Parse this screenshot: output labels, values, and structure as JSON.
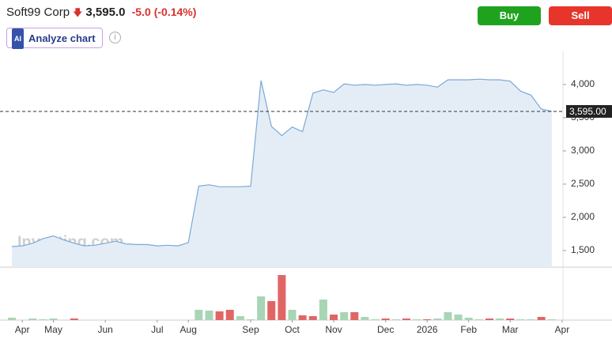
{
  "header": {
    "name": "Soft99 Corp",
    "price": "3,595.0",
    "change": "-5.0",
    "change_percent": "(-0.14%)",
    "buy": "Buy",
    "sell": "Sell",
    "analyze": "Analyze chart",
    "watermark": "Investing.com"
  },
  "chart_data": [
    {
      "type": "area",
      "color": "#7aa9d6",
      "fill": "#e4edf6",
      "categories": [
        null,
        "Apr",
        null,
        null,
        "May",
        null,
        null,
        null,
        null,
        "Jun",
        null,
        null,
        null,
        null,
        "Jul",
        null,
        null,
        "Aug",
        null,
        null,
        null,
        null,
        null,
        "Sep",
        null,
        null,
        null,
        "Oct",
        null,
        null,
        null,
        "Nov",
        null,
        null,
        null,
        null,
        "Dec",
        null,
        null,
        null,
        "2026",
        null,
        null,
        null,
        "Feb",
        null,
        null,
        null,
        "Mar",
        null,
        null,
        null,
        null,
        "Apr"
      ],
      "values": [
        1560,
        1570,
        1610,
        1680,
        1720,
        1660,
        1610,
        1570,
        1580,
        1610,
        1640,
        1600,
        1590,
        1590,
        1570,
        1580,
        1570,
        1620,
        2470,
        2490,
        2460,
        2460,
        2460,
        2470,
        4060,
        3370,
        3230,
        3360,
        3290,
        3870,
        3920,
        3880,
        4010,
        3990,
        4000,
        3990,
        4000,
        4010,
        3990,
        4000,
        3990,
        3960,
        4070,
        4070,
        4070,
        4080,
        4070,
        4070,
        4050,
        3900,
        3840,
        3630,
        3595,
        null
      ],
      "ylim": [
        1250,
        4380
      ],
      "yticks": [
        {
          "value": 1500,
          "label": "1,500"
        },
        {
          "value": 2000,
          "label": "2,000"
        },
        {
          "value": 2500,
          "label": "2,500"
        },
        {
          "value": 3000,
          "label": "3,000"
        },
        {
          "value": 3500,
          "label": "3,500"
        },
        {
          "value": 4000,
          "label": "4,000"
        }
      ],
      "reference_line": {
        "value": 3595,
        "label": "3,595.00"
      }
    },
    {
      "type": "bar",
      "values": [
        3,
        0,
        2,
        1,
        2,
        0,
        2,
        0,
        0,
        0,
        0,
        0,
        0,
        0,
        0,
        0,
        0,
        0,
        13,
        12,
        11,
        13,
        5,
        1,
        30,
        24,
        57,
        13,
        6,
        5,
        26,
        7,
        10,
        10,
        4,
        1,
        2,
        1,
        2,
        1,
        1,
        2,
        10,
        7,
        3,
        1,
        2,
        2,
        2,
        1,
        1,
        4,
        1,
        null
      ],
      "colors": [
        "#a8d5b5",
        "#a8d5b5",
        "#a8d5b5",
        "#a8d5b5",
        "#a8d5b5",
        "#a8d5b5",
        "#e06666",
        "#a8d5b5",
        "#a8d5b5",
        "#a8d5b5",
        "#a8d5b5",
        "#a8d5b5",
        "#a8d5b5",
        "#a8d5b5",
        "#a8d5b5",
        "#a8d5b5",
        "#a8d5b5",
        "#a8d5b5",
        "#a8d5b5",
        "#a8d5b5",
        "#e06666",
        "#e06666",
        "#a8d5b5",
        "#a8d5b5",
        "#a8d5b5",
        "#e06666",
        "#e06666",
        "#a8d5b5",
        "#e06666",
        "#e06666",
        "#a8d5b5",
        "#e06666",
        "#a8d5b5",
        "#e06666",
        "#a8d5b5",
        "#a8d5b5",
        "#e06666",
        "#a8d5b5",
        "#e06666",
        "#a8d5b5",
        "#e06666",
        "#a8d5b5",
        "#a8d5b5",
        "#a8d5b5",
        "#a8d5b5",
        "#a8d5b5",
        "#e06666",
        "#a8d5b5",
        "#e06666",
        "#a8d5b5",
        "#a8d5b5",
        "#e06666",
        "#a8d5b5",
        "#a8d5b5"
      ],
      "ylim": [
        0,
        60
      ]
    }
  ]
}
